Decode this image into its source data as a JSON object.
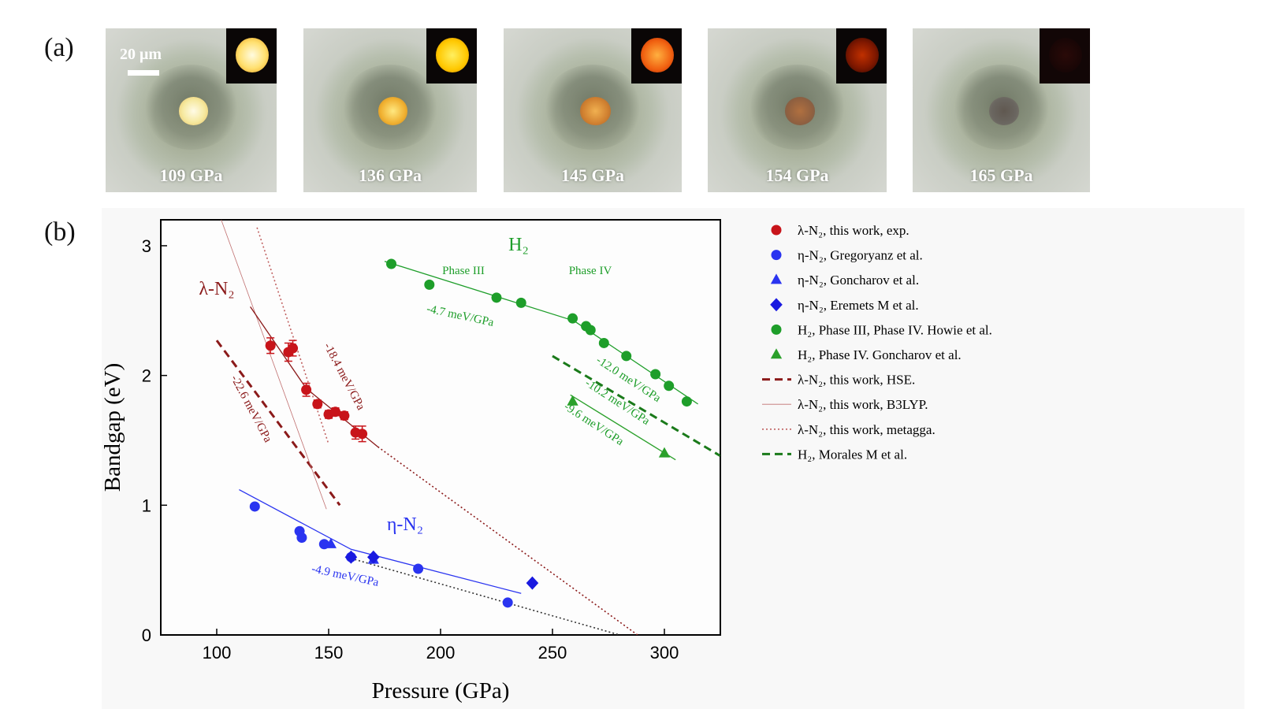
{
  "panel_a": {
    "label": "(a)",
    "scale_bar": "20 μm",
    "images": [
      {
        "caption": "109 GPa"
      },
      {
        "caption": "136 GPa"
      },
      {
        "caption": "145 GPa"
      },
      {
        "caption": "154 GPa"
      },
      {
        "caption": "165 GPa"
      }
    ]
  },
  "panel_b_label": "(b)",
  "chart_data": {
    "type": "scatter",
    "x_label": "Pressure (GPa)",
    "y_label": "Bandgap (eV)",
    "xlim": [
      75,
      325
    ],
    "ylim": [
      0,
      3.2
    ],
    "xticks": [
      100,
      150,
      200,
      250,
      300
    ],
    "yticks": [
      0,
      1,
      2,
      3
    ],
    "series": [
      {
        "name": "λ-N₂, this work, exp.",
        "color": "#c8141a",
        "marker": "circle",
        "x": [
          124,
          132,
          134,
          140,
          145,
          150,
          153,
          157,
          162,
          165
        ],
        "values": [
          2.23,
          2.18,
          2.21,
          1.89,
          1.78,
          1.7,
          1.72,
          1.69,
          1.56,
          1.55
        ],
        "errors": [
          0.06,
          0.07,
          0.06,
          0.05,
          0.03,
          0.03,
          0.03,
          0.03,
          0.05,
          0.06
        ]
      },
      {
        "name": "η-N₂, Gregoryanz et al.",
        "color": "#2a34f0",
        "marker": "circle",
        "x": [
          117,
          137,
          138,
          148,
          160,
          190,
          230
        ],
        "values": [
          0.99,
          0.8,
          0.75,
          0.7,
          0.6,
          0.51,
          0.25
        ]
      },
      {
        "name": "η-N₂, Goncharov et al.",
        "color": "#2a34f0",
        "marker": "triangle",
        "x": [
          151,
          170
        ],
        "values": [
          0.7,
          0.58
        ]
      },
      {
        "name": "η-N₂, Eremets M et al.",
        "color": "#1a1ae0",
        "marker": "diamond",
        "x": [
          160,
          170,
          241
        ],
        "values": [
          0.6,
          0.6,
          0.4
        ]
      },
      {
        "name": "H₂, Phase III, Phase IV. Howie et al.",
        "color": "#1e9e2a",
        "marker": "circle",
        "x": [
          178,
          195,
          225,
          236,
          259,
          265,
          267,
          273,
          283,
          296,
          302,
          310
        ],
        "values": [
          2.86,
          2.7,
          2.6,
          2.56,
          2.44,
          2.38,
          2.35,
          2.25,
          2.15,
          2.01,
          1.92,
          1.8
        ]
      },
      {
        "name": "H₂, Phase IV. Goncharov et al.",
        "color": "#2aa02a",
        "marker": "triangle",
        "x": [
          259,
          300
        ],
        "values": [
          1.8,
          1.4
        ]
      }
    ],
    "lines": [
      {
        "name": "λ-N₂, this work, HSE.",
        "color": "#8b1a1a",
        "style": "dashed",
        "x": [
          100,
          155
        ],
        "y": [
          2.27,
          1.0
        ]
      },
      {
        "name": "λ-N₂, this work, B3LYP.",
        "color": "#c07070",
        "style": "thin",
        "x": [
          102,
          149
        ],
        "y": [
          3.2,
          0.97
        ]
      },
      {
        "name": "λ-N₂, this work, metagga.",
        "color": "#c06060",
        "style": "dotted",
        "x": [
          118,
          150
        ],
        "y": [
          3.14,
          1.47
        ]
      },
      {
        "name": "H₂,  Morales M et al.",
        "color": "#1a7a1a",
        "style": "dashed",
        "x": [
          250,
          325
        ],
        "y": [
          2.15,
          1.38
        ]
      },
      {
        "color": "#8b1a1a",
        "style": "solid",
        "x": [
          115,
          140,
          172
        ],
        "y": [
          2.53,
          1.9,
          1.45
        ]
      },
      {
        "color": "#8b1a1a",
        "style": "dotted",
        "x": [
          172,
          288
        ],
        "y": [
          1.45,
          0
        ]
      },
      {
        "color": "#2a34f0",
        "style": "solid",
        "x": [
          110,
          160,
          236
        ],
        "y": [
          1.12,
          0.66,
          0.32
        ]
      },
      {
        "color": "#333333",
        "style": "dotted",
        "x": [
          160,
          280
        ],
        "y": [
          0.59,
          0
        ]
      },
      {
        "color": "#1e9e2a",
        "style": "solid",
        "x": [
          175,
          258
        ],
        "y": [
          2.88,
          2.43
        ]
      },
      {
        "color": "#1e9e2a",
        "style": "solid",
        "x": [
          258,
          315
        ],
        "y": [
          2.44,
          1.78
        ]
      },
      {
        "color": "#2aa02a",
        "style": "solid",
        "x": [
          258,
          305
        ],
        "y": [
          1.85,
          1.35
        ]
      }
    ],
    "annotations": [
      {
        "text": "λ-N₂",
        "color": "#8b1a1a"
      },
      {
        "text": "η-N₂",
        "color": "#2a34f0"
      },
      {
        "text": "H₂",
        "color": "#1e9e2a"
      },
      {
        "text": "Phase III",
        "color": "#1e9e2a"
      },
      {
        "text": "Phase IV",
        "color": "#1e9e2a"
      },
      {
        "text": "-18.4 meV/GPa",
        "color": "#8b1a1a"
      },
      {
        "text": "-22.6 meV/GPa",
        "color": "#8b1a1a"
      },
      {
        "text": "-4.9 meV/GPa",
        "color": "#2a34f0"
      },
      {
        "text": "-4.7 meV/GPa",
        "color": "#1e9e2a"
      },
      {
        "text": "-12.0 meV/GPa",
        "color": "#1e9e2a"
      },
      {
        "text": "-10.2 meV/GPa",
        "color": "#1e9e2a"
      },
      {
        "text": "-9.6 meV/GPa",
        "color": "#1e9e2a"
      }
    ]
  }
}
